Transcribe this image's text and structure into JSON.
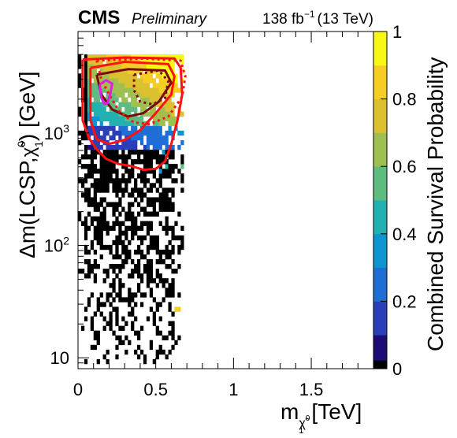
{
  "chart_data": {
    "type": "heatmap",
    "header": {
      "experiment": "CMS",
      "status": "Preliminary",
      "lumi": "138 fb",
      "lumi_exp": "−1",
      "energy": "(13 TeV)"
    },
    "xlabel": {
      "main": "m",
      "sub": "χ̃",
      "subsup": "0",
      "subsub": "1",
      "unit": "[TeV]"
    },
    "ylabel": {
      "pre": "Δm(LCSP,",
      "chi": "χ̃",
      "sup": "0",
      "sub": "1",
      "post": ") [GeV]"
    },
    "zlabel": "Combined Survival Probability",
    "xlim": [
      0,
      1.9
    ],
    "ylim": [
      8,
      8000
    ],
    "yscale": "log",
    "zlim": [
      0,
      1
    ],
    "x_ticks": [
      {
        "value": 0,
        "label": "0"
      },
      {
        "value": 0.5,
        "label": "0.5"
      },
      {
        "value": 1,
        "label": "1"
      },
      {
        "value": 1.5,
        "label": "1.5"
      }
    ],
    "y_ticks": [
      {
        "value": 10,
        "label": "10",
        "sup": ""
      },
      {
        "value": 100,
        "label": "10",
        "sup": "2"
      },
      {
        "value": 1000,
        "label": "10",
        "sup": "3"
      }
    ],
    "z_ticks": [
      {
        "value": 0,
        "label": "0"
      },
      {
        "value": 0.2,
        "label": "0.2"
      },
      {
        "value": 0.4,
        "label": "0.4"
      },
      {
        "value": 0.6,
        "label": "0.6"
      },
      {
        "value": 0.8,
        "label": "0.8"
      },
      {
        "value": 1,
        "label": "1"
      }
    ],
    "colorscale": [
      "#1a0d75",
      "#2a3eb7",
      "#1f6ed6",
      "#0e95cf",
      "#22b0b0",
      "#5ebc80",
      "#9fc050",
      "#dbc02f",
      "#f6cd24",
      "#f8f816"
    ],
    "zero_color": "#000000",
    "contours": [
      {
        "name": "red-outer",
        "color": "#ff1111",
        "style": "solid",
        "points": [
          [
            0.03,
            4500
          ],
          [
            0.3,
            4700
          ],
          [
            0.62,
            4600
          ],
          [
            0.66,
            3800
          ],
          [
            0.67,
            2200
          ],
          [
            0.64,
            1300
          ],
          [
            0.6,
            800
          ],
          [
            0.56,
            560
          ],
          [
            0.5,
            480
          ],
          [
            0.42,
            470
          ],
          [
            0.34,
            510
          ],
          [
            0.26,
            530
          ],
          [
            0.18,
            590
          ],
          [
            0.12,
            720
          ],
          [
            0.07,
            900
          ],
          [
            0.03,
            1300
          ],
          [
            0.03,
            4500
          ]
        ]
      },
      {
        "name": "red-inner",
        "color": "#ff1111",
        "style": "solid",
        "points": [
          [
            0.08,
            3800
          ],
          [
            0.3,
            4300
          ],
          [
            0.58,
            4100
          ],
          [
            0.62,
            3200
          ],
          [
            0.6,
            2200
          ],
          [
            0.5,
            1500
          ],
          [
            0.4,
            1060
          ],
          [
            0.3,
            870
          ],
          [
            0.2,
            800
          ],
          [
            0.12,
            880
          ],
          [
            0.08,
            1300
          ],
          [
            0.08,
            3800
          ]
        ]
      },
      {
        "name": "dark-red-solid",
        "color": "#7a0a0a",
        "style": "solid",
        "points": [
          [
            0.12,
            3300
          ],
          [
            0.32,
            3700
          ],
          [
            0.56,
            3600
          ],
          [
            0.6,
            2800
          ],
          [
            0.52,
            1900
          ],
          [
            0.42,
            1500
          ],
          [
            0.32,
            1400
          ],
          [
            0.22,
            1620
          ],
          [
            0.15,
            2200
          ],
          [
            0.12,
            3300
          ]
        ]
      },
      {
        "name": "red-dotted",
        "color": "#ff1111",
        "style": "dotted",
        "points": [
          [
            0.12,
            4400
          ],
          [
            0.42,
            4600
          ],
          [
            0.66,
            4400
          ],
          [
            0.69,
            3200
          ],
          [
            0.67,
            2100
          ],
          [
            0.58,
            1400
          ],
          [
            0.46,
            1200
          ],
          [
            0.36,
            1240
          ],
          [
            0.27,
            1520
          ],
          [
            0.2,
            2200
          ],
          [
            0.15,
            3000
          ],
          [
            0.12,
            4400
          ]
        ]
      },
      {
        "name": "dark-red-dotted",
        "color": "#7a0a0a",
        "style": "dotted",
        "points": [
          [
            0.36,
            3300
          ],
          [
            0.52,
            3600
          ],
          [
            0.58,
            2900
          ],
          [
            0.56,
            2050
          ],
          [
            0.48,
            1800
          ],
          [
            0.4,
            1900
          ],
          [
            0.36,
            2400
          ],
          [
            0.36,
            3300
          ]
        ]
      },
      {
        "name": "magenta",
        "color": "#e11de1",
        "style": "solid",
        "points": [
          [
            0.14,
            2700
          ],
          [
            0.18,
            2950
          ],
          [
            0.22,
            2750
          ],
          [
            0.21,
            2300
          ],
          [
            0.19,
            1850
          ],
          [
            0.17,
            1800
          ],
          [
            0.15,
            2050
          ],
          [
            0.14,
            2700
          ]
        ]
      }
    ]
  }
}
